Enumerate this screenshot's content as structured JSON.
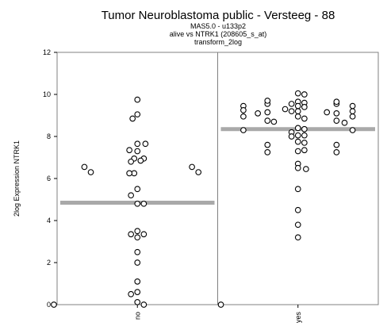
{
  "chart_data": {
    "type": "scatter",
    "title": "Tumor Neuroblastoma public - Versteeg - 88",
    "subtitles": [
      "MAS5.0 - u133p2",
      "alive vs NTRK1 (208605_s_at)",
      "transform_2log"
    ],
    "ylabel": "2log Expression NTRK1",
    "ylim": [
      0,
      12
    ],
    "yticks": [
      0,
      2,
      4,
      6,
      8,
      10,
      12
    ],
    "categories": [
      "no",
      "yes"
    ],
    "marker": "open-circle",
    "colors": {
      "median": "#a9a9a9",
      "frame": "#808080",
      "points": "#000000"
    },
    "groups": [
      {
        "name": "no",
        "median": 4.85,
        "points": [
          {
            "offset": 0.0,
            "y": 9.75
          },
          {
            "offset": -0.03,
            "y": 8.85
          },
          {
            "offset": 0.0,
            "y": 9.05
          },
          {
            "offset": 0.0,
            "y": 7.65
          },
          {
            "offset": 0.05,
            "y": 7.65
          },
          {
            "offset": -0.05,
            "y": 7.35
          },
          {
            "offset": 0.0,
            "y": 7.3
          },
          {
            "offset": -0.02,
            "y": 6.95
          },
          {
            "offset": 0.04,
            "y": 6.95
          },
          {
            "offset": -0.04,
            "y": 6.8
          },
          {
            "offset": 0.02,
            "y": 6.85
          },
          {
            "offset": -0.33,
            "y": 6.55
          },
          {
            "offset": -0.29,
            "y": 6.3
          },
          {
            "offset": 0.34,
            "y": 6.55
          },
          {
            "offset": 0.38,
            "y": 6.3
          },
          {
            "offset": -0.02,
            "y": 6.25
          },
          {
            "offset": -0.05,
            "y": 6.25
          },
          {
            "offset": 0.0,
            "y": 5.5
          },
          {
            "offset": -0.04,
            "y": 5.2
          },
          {
            "offset": 0.0,
            "y": 4.8
          },
          {
            "offset": 0.04,
            "y": 4.8
          },
          {
            "offset": 0.04,
            "y": 3.35
          },
          {
            "offset": -0.04,
            "y": 3.35
          },
          {
            "offset": 0.0,
            "y": 3.5
          },
          {
            "offset": 0.0,
            "y": 3.2
          },
          {
            "offset": 0.0,
            "y": 2.5
          },
          {
            "offset": 0.0,
            "y": 2.0
          },
          {
            "offset": 0.0,
            "y": 1.1
          },
          {
            "offset": -0.04,
            "y": 0.5
          },
          {
            "offset": 0.0,
            "y": 0.6
          },
          {
            "offset": 0.0,
            "y": 0.12
          },
          {
            "offset": 0.04,
            "y": 0.0
          },
          {
            "offset": -0.52,
            "y": 0.0
          },
          {
            "offset": 0.52,
            "y": 0.0
          }
        ]
      },
      {
        "name": "yes",
        "median": 8.35,
        "points": [
          {
            "offset": -0.34,
            "y": 9.45
          },
          {
            "offset": -0.34,
            "y": 9.25
          },
          {
            "offset": -0.34,
            "y": 8.95
          },
          {
            "offset": -0.34,
            "y": 8.3
          },
          {
            "offset": -0.25,
            "y": 9.1
          },
          {
            "offset": -0.19,
            "y": 9.55
          },
          {
            "offset": -0.19,
            "y": 9.7
          },
          {
            "offset": -0.19,
            "y": 9.15
          },
          {
            "offset": -0.19,
            "y": 8.75
          },
          {
            "offset": -0.15,
            "y": 8.7
          },
          {
            "offset": -0.19,
            "y": 7.6
          },
          {
            "offset": -0.19,
            "y": 7.25
          },
          {
            "offset": -0.08,
            "y": 9.3
          },
          {
            "offset": -0.04,
            "y": 9.2
          },
          {
            "offset": -0.04,
            "y": 9.55
          },
          {
            "offset": 0.0,
            "y": 10.05
          },
          {
            "offset": 0.04,
            "y": 10.0
          },
          {
            "offset": 0.0,
            "y": 9.65
          },
          {
            "offset": 0.04,
            "y": 9.6
          },
          {
            "offset": 0.0,
            "y": 9.45
          },
          {
            "offset": 0.04,
            "y": 9.4
          },
          {
            "offset": 0.0,
            "y": 9.2
          },
          {
            "offset": 0.0,
            "y": 8.95
          },
          {
            "offset": 0.04,
            "y": 8.85
          },
          {
            "offset": 0.0,
            "y": 8.4
          },
          {
            "offset": 0.04,
            "y": 8.35
          },
          {
            "offset": -0.04,
            "y": 8.2
          },
          {
            "offset": -0.04,
            "y": 8.0
          },
          {
            "offset": 0.0,
            "y": 8.05
          },
          {
            "offset": 0.04,
            "y": 8.05
          },
          {
            "offset": 0.0,
            "y": 7.75
          },
          {
            "offset": 0.04,
            "y": 7.7
          },
          {
            "offset": 0.0,
            "y": 7.3
          },
          {
            "offset": 0.04,
            "y": 7.35
          },
          {
            "offset": 0.0,
            "y": 6.7
          },
          {
            "offset": 0.0,
            "y": 6.5
          },
          {
            "offset": 0.05,
            "y": 6.45
          },
          {
            "offset": 0.0,
            "y": 5.5
          },
          {
            "offset": 0.0,
            "y": 4.5
          },
          {
            "offset": 0.0,
            "y": 3.8
          },
          {
            "offset": 0.0,
            "y": 3.2
          },
          {
            "offset": 0.18,
            "y": 9.15
          },
          {
            "offset": 0.24,
            "y": 9.55
          },
          {
            "offset": 0.24,
            "y": 9.65
          },
          {
            "offset": 0.24,
            "y": 9.1
          },
          {
            "offset": 0.24,
            "y": 8.75
          },
          {
            "offset": 0.29,
            "y": 8.65
          },
          {
            "offset": 0.24,
            "y": 7.6
          },
          {
            "offset": 0.24,
            "y": 7.25
          },
          {
            "offset": 0.34,
            "y": 9.45
          },
          {
            "offset": 0.34,
            "y": 9.2
          },
          {
            "offset": 0.34,
            "y": 8.95
          },
          {
            "offset": 0.34,
            "y": 8.3
          }
        ]
      }
    ]
  }
}
